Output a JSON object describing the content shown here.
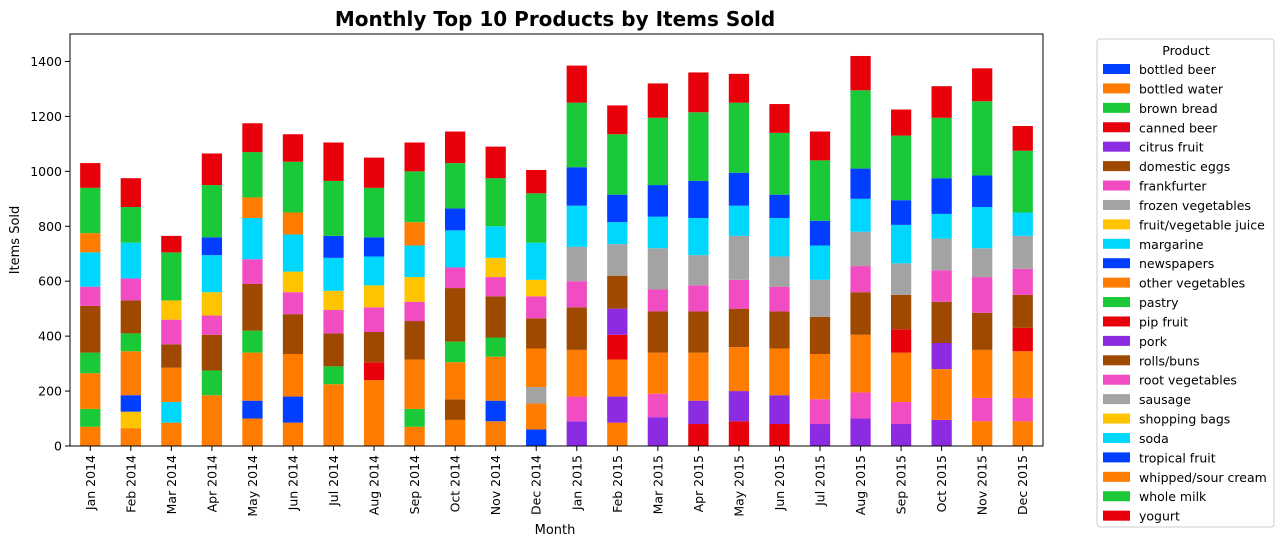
{
  "chart_data": {
    "type": "bar",
    "stacked": true,
    "title": "Monthly Top 10 Products by Items Sold",
    "xlabel": "Month",
    "ylabel": "Items Sold",
    "ylim": [
      0,
      1500
    ],
    "yticks": [
      0,
      200,
      400,
      600,
      800,
      1000,
      1200,
      1400
    ],
    "grid": false,
    "legend_title": "Product",
    "legend_position": "outside-right",
    "categories": [
      "Jan 2014",
      "Feb 2014",
      "Mar 2014",
      "Apr 2014",
      "May 2014",
      "Jun 2014",
      "Jul 2014",
      "Aug 2014",
      "Sep 2014",
      "Oct 2014",
      "Nov 2014",
      "Dec 2014",
      "Jan 2015",
      "Feb 2015",
      "Mar 2015",
      "Apr 2015",
      "May 2015",
      "Jun 2015",
      "Jul 2015",
      "Aug 2015",
      "Sep 2015",
      "Oct 2015",
      "Nov 2015",
      "Dec 2015"
    ],
    "series": [
      {
        "name": "bottled beer",
        "color": "#023eff",
        "values": [
          0,
          0,
          0,
          0,
          0,
          0,
          0,
          0,
          0,
          0,
          0,
          60,
          0,
          0,
          0,
          0,
          0,
          0,
          0,
          0,
          0,
          0,
          0,
          0
        ]
      },
      {
        "name": "bottled water",
        "color": "#ff7c00",
        "values": [
          70,
          65,
          85,
          185,
          100,
          85,
          225,
          240,
          70,
          95,
          90,
          95,
          0,
          85,
          0,
          0,
          0,
          0,
          0,
          0,
          0,
          0,
          90,
          90
        ]
      },
      {
        "name": "brown bread",
        "color": "#1ac938",
        "values": [
          65,
          0,
          0,
          90,
          0,
          0,
          65,
          0,
          65,
          0,
          0,
          0,
          0,
          0,
          0,
          0,
          0,
          0,
          0,
          0,
          0,
          0,
          0,
          0
        ]
      },
      {
        "name": "canned beer",
        "color": "#e8000b",
        "values": [
          0,
          0,
          0,
          0,
          0,
          0,
          0,
          65,
          0,
          0,
          0,
          0,
          0,
          0,
          0,
          80,
          90,
          80,
          0,
          0,
          0,
          0,
          0,
          0
        ]
      },
      {
        "name": "citrus fruit",
        "color": "#8b2be2",
        "values": [
          0,
          0,
          0,
          0,
          0,
          0,
          0,
          0,
          0,
          0,
          0,
          0,
          90,
          95,
          105,
          85,
          110,
          105,
          80,
          100,
          80,
          95,
          0,
          0
        ]
      },
      {
        "name": "domestic eggs",
        "color": "#9f4800",
        "values": [
          0,
          0,
          0,
          0,
          0,
          0,
          0,
          0,
          0,
          75,
          0,
          0,
          0,
          0,
          0,
          0,
          0,
          0,
          0,
          0,
          0,
          0,
          0,
          0
        ]
      },
      {
        "name": "frankfurter",
        "color": "#f14cc1",
        "values": [
          0,
          0,
          0,
          0,
          0,
          0,
          0,
          0,
          0,
          0,
          0,
          0,
          90,
          0,
          85,
          0,
          0,
          0,
          90,
          95,
          80,
          0,
          85,
          85
        ]
      },
      {
        "name": "frozen vegetables",
        "color": "#a3a3a3",
        "values": [
          0,
          0,
          0,
          0,
          0,
          0,
          0,
          0,
          0,
          0,
          0,
          60,
          0,
          0,
          0,
          0,
          0,
          0,
          0,
          0,
          0,
          0,
          0,
          0
        ]
      },
      {
        "name": "fruit/vegetable juice",
        "color": "#ffc400",
        "values": [
          0,
          60,
          0,
          0,
          0,
          0,
          0,
          0,
          0,
          0,
          0,
          0,
          0,
          0,
          0,
          0,
          0,
          0,
          0,
          0,
          0,
          0,
          0,
          0
        ]
      },
      {
        "name": "margarine",
        "color": "#00d7ff",
        "values": [
          0,
          0,
          75,
          0,
          0,
          0,
          0,
          0,
          0,
          0,
          0,
          0,
          0,
          0,
          0,
          0,
          0,
          0,
          0,
          0,
          0,
          0,
          0,
          0
        ]
      },
      {
        "name": "newspapers",
        "color": "#023eff",
        "values": [
          0,
          60,
          0,
          0,
          65,
          95,
          0,
          0,
          0,
          0,
          75,
          0,
          0,
          0,
          0,
          0,
          0,
          0,
          0,
          0,
          0,
          0,
          0,
          0
        ]
      },
      {
        "name": "other vegetables",
        "color": "#ff7c00",
        "values": [
          130,
          160,
          125,
          0,
          175,
          155,
          0,
          0,
          180,
          135,
          160,
          140,
          170,
          135,
          150,
          175,
          160,
          170,
          165,
          210,
          180,
          185,
          175,
          170
        ]
      },
      {
        "name": "pastry",
        "color": "#1ac938",
        "values": [
          75,
          65,
          0,
          0,
          80,
          0,
          0,
          0,
          0,
          75,
          70,
          0,
          0,
          0,
          0,
          0,
          0,
          0,
          0,
          0,
          0,
          0,
          0,
          0
        ]
      },
      {
        "name": "pip fruit",
        "color": "#e8000b",
        "values": [
          0,
          0,
          0,
          0,
          0,
          0,
          0,
          0,
          0,
          0,
          0,
          0,
          0,
          90,
          0,
          0,
          0,
          0,
          0,
          0,
          85,
          0,
          0,
          85
        ]
      },
      {
        "name": "pork",
        "color": "#8b2be2",
        "values": [
          0,
          0,
          0,
          0,
          0,
          0,
          0,
          0,
          0,
          0,
          0,
          0,
          0,
          95,
          0,
          0,
          0,
          0,
          0,
          0,
          0,
          95,
          0,
          0
        ]
      },
      {
        "name": "rolls/buns",
        "color": "#9f4800",
        "values": [
          170,
          120,
          85,
          130,
          170,
          145,
          120,
          110,
          140,
          195,
          150,
          110,
          155,
          120,
          150,
          150,
          140,
          135,
          135,
          155,
          125,
          150,
          135,
          120
        ]
      },
      {
        "name": "root vegetables",
        "color": "#f14cc1",
        "values": [
          70,
          80,
          90,
          70,
          90,
          80,
          85,
          90,
          70,
          75,
          70,
          80,
          95,
          0,
          80,
          95,
          105,
          90,
          0,
          95,
          0,
          115,
          130,
          95
        ]
      },
      {
        "name": "sausage",
        "color": "#a3a3a3",
        "values": [
          0,
          0,
          0,
          0,
          0,
          0,
          0,
          0,
          0,
          0,
          0,
          0,
          125,
          115,
          150,
          110,
          160,
          110,
          135,
          125,
          115,
          115,
          105,
          120
        ]
      },
      {
        "name": "shopping bags",
        "color": "#ffc400",
        "values": [
          0,
          0,
          70,
          85,
          0,
          75,
          70,
          80,
          90,
          0,
          70,
          60,
          0,
          0,
          0,
          0,
          0,
          0,
          0,
          0,
          0,
          0,
          0,
          0
        ]
      },
      {
        "name": "soda",
        "color": "#00d7ff",
        "values": [
          125,
          130,
          0,
          135,
          150,
          135,
          120,
          105,
          115,
          135,
          115,
          135,
          150,
          80,
          115,
          135,
          110,
          140,
          125,
          120,
          140,
          90,
          150,
          85
        ]
      },
      {
        "name": "tropical fruit",
        "color": "#023eff",
        "values": [
          0,
          0,
          0,
          65,
          0,
          0,
          80,
          70,
          0,
          80,
          0,
          0,
          140,
          100,
          115,
          135,
          120,
          85,
          90,
          110,
          90,
          130,
          115,
          0
        ]
      },
      {
        "name": "whipped/sour cream",
        "color": "#ff7c00",
        "values": [
          70,
          0,
          0,
          0,
          75,
          80,
          0,
          0,
          85,
          0,
          0,
          0,
          0,
          0,
          0,
          0,
          0,
          0,
          0,
          0,
          0,
          0,
          0,
          0
        ]
      },
      {
        "name": "whole milk",
        "color": "#1ac938",
        "values": [
          165,
          130,
          175,
          190,
          165,
          185,
          200,
          180,
          185,
          165,
          175,
          180,
          235,
          220,
          245,
          250,
          255,
          225,
          220,
          285,
          235,
          220,
          270,
          225
        ]
      },
      {
        "name": "yogurt",
        "color": "#e8000b",
        "values": [
          90,
          105,
          60,
          115,
          105,
          100,
          140,
          110,
          105,
          115,
          115,
          85,
          135,
          105,
          125,
          145,
          105,
          105,
          105,
          125,
          95,
          115,
          120,
          90
        ]
      }
    ]
  }
}
